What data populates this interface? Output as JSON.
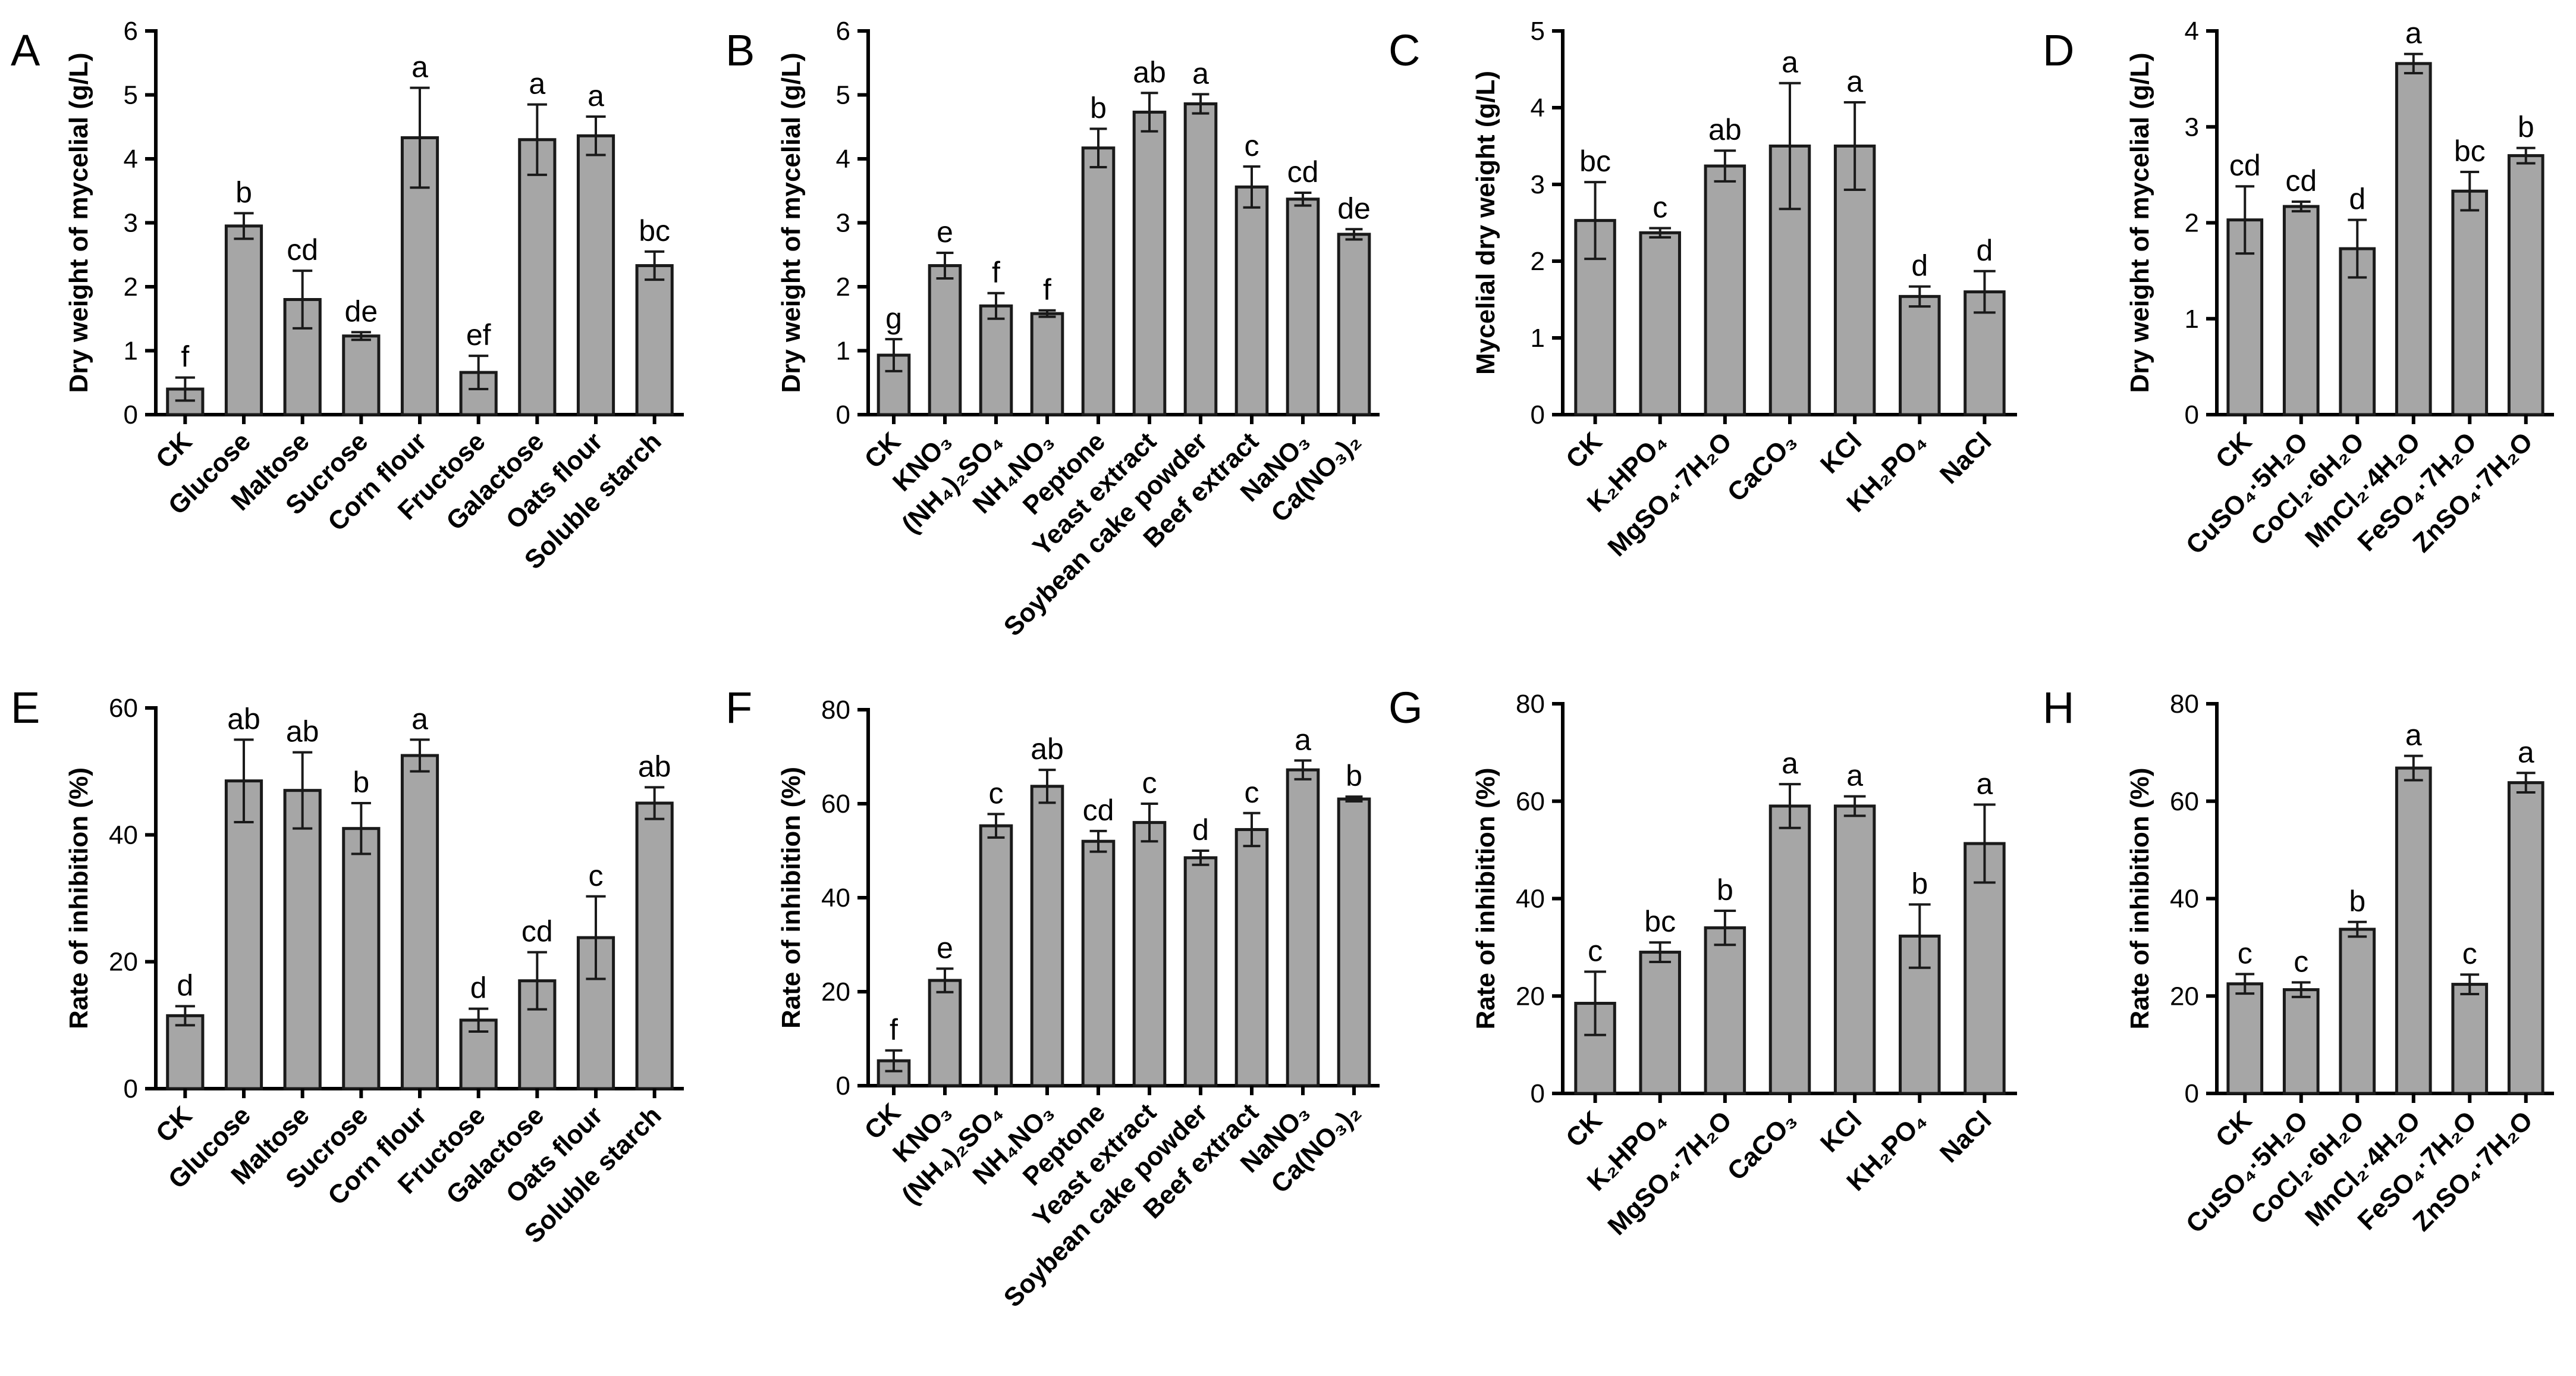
{
  "chart_data": [
    {
      "panel": "A",
      "type": "bar",
      "ylabel": "Dry weight of mycelial (g/L)",
      "ylim": [
        0,
        6
      ],
      "yticks": [
        0,
        1,
        2,
        3,
        4,
        5,
        6
      ],
      "categories": [
        "CK",
        "Glucose",
        "Maltose",
        "Sucrose",
        "Corn flour",
        "Fructose",
        "Galactose",
        "Oats flour",
        "Soluble starch"
      ],
      "values": [
        0.4,
        2.95,
        1.8,
        1.23,
        4.33,
        0.66,
        4.3,
        4.36,
        2.33
      ],
      "errors": [
        0.18,
        0.2,
        0.45,
        0.06,
        0.78,
        0.26,
        0.55,
        0.3,
        0.22
      ],
      "letters": [
        "f",
        "b",
        "cd",
        "de",
        "a",
        "ef",
        "a",
        "a",
        "bc"
      ]
    },
    {
      "panel": "B",
      "type": "bar",
      "ylabel": "Dry weight of mycelial (g/L)",
      "ylim": [
        0,
        6
      ],
      "yticks": [
        0,
        1,
        2,
        3,
        4,
        5,
        6
      ],
      "categories": [
        "CK",
        "KNO₃",
        "(NH₄)₂SO₄",
        "NH₄NO₃",
        "Peptone",
        "Yeast extract",
        "Soybean cake powder",
        "Beef extract",
        "NaNO₃",
        "Ca(NO₃)₂"
      ],
      "values": [
        0.93,
        2.33,
        1.7,
        1.58,
        4.17,
        4.73,
        4.86,
        3.56,
        3.37,
        2.82
      ],
      "errors": [
        0.25,
        0.2,
        0.2,
        0.05,
        0.3,
        0.3,
        0.15,
        0.32,
        0.1,
        0.08
      ],
      "letters": [
        "g",
        "e",
        "f",
        "f",
        "b",
        "ab",
        "a",
        "c",
        "cd",
        "de"
      ]
    },
    {
      "panel": "C",
      "type": "bar",
      "ylabel": "Mycelial dry weight (g/L)",
      "ylim": [
        0,
        5
      ],
      "yticks": [
        0,
        1,
        2,
        3,
        4,
        5
      ],
      "categories": [
        "CK",
        "K₂HPO₄",
        "MgSO₄·7H₂O",
        "CaCO₃",
        "KCl",
        "KH₂PO₄",
        "NaCl"
      ],
      "values": [
        2.53,
        2.37,
        3.24,
        3.5,
        3.5,
        1.54,
        1.6
      ],
      "errors": [
        0.5,
        0.06,
        0.2,
        0.82,
        0.57,
        0.13,
        0.27
      ],
      "letters": [
        "bc",
        "c",
        "ab",
        "a",
        "a",
        "d",
        "d"
      ]
    },
    {
      "panel": "D",
      "type": "bar",
      "ylabel": "Dry weight of mycelial (g/L)",
      "ylim": [
        0,
        4
      ],
      "yticks": [
        0,
        1,
        2,
        3,
        4
      ],
      "categories": [
        "CK",
        "CuSO₄·5H₂O",
        "CoCl₂·6H₂O",
        "MnCl₂·4H₂O",
        "FeSO₄·7H₂O",
        "ZnSO₄·7H₂O"
      ],
      "values": [
        2.03,
        2.17,
        1.73,
        3.66,
        2.33,
        2.7
      ],
      "errors": [
        0.35,
        0.05,
        0.3,
        0.1,
        0.2,
        0.08
      ],
      "letters": [
        "cd",
        "cd",
        "d",
        "a",
        "bc",
        "b"
      ]
    },
    {
      "panel": "E",
      "type": "bar",
      "ylabel": "Rate of inhibition (%)",
      "ylim": [
        0,
        60
      ],
      "yticks": [
        0,
        20,
        40,
        60
      ],
      "categories": [
        "CK",
        "Glucose",
        "Maltose",
        "Sucrose",
        "Corn flour",
        "Fructose",
        "Galactose",
        "Oats flour",
        "Soluble starch"
      ],
      "values": [
        11.5,
        48.5,
        47.0,
        41.0,
        52.5,
        10.8,
        17.0,
        23.8,
        45.0
      ],
      "errors": [
        1.5,
        6.5,
        6.0,
        4.0,
        2.5,
        1.8,
        4.5,
        6.5,
        2.5
      ],
      "letters": [
        "d",
        "ab",
        "ab",
        "b",
        "a",
        "d",
        "cd",
        "c",
        "ab"
      ]
    },
    {
      "panel": "F",
      "type": "bar",
      "ylabel": "Rate of inhibition (%)",
      "ylim": [
        0,
        80
      ],
      "yticks": [
        0,
        20,
        40,
        60,
        80
      ],
      "categories": [
        "CK",
        "KNO₃",
        "(NH₄)₂SO₄",
        "NH₄NO₃",
        "Peptone",
        "Yeast extract",
        "Soybean cake powder",
        "Beef extract",
        "NaNO₃",
        "Ca(NO₃)₂"
      ],
      "values": [
        5.3,
        22.4,
        55.3,
        63.7,
        52.0,
        56.0,
        48.5,
        54.5,
        67.2,
        61.0
      ],
      "errors": [
        2.2,
        2.5,
        2.5,
        3.5,
        2.2,
        4.0,
        1.5,
        3.5,
        2.0,
        0.5
      ],
      "letters": [
        "f",
        "e",
        "c",
        "ab",
        "cd",
        "c",
        "d",
        "c",
        "a",
        "b"
      ]
    },
    {
      "panel": "G",
      "type": "bar",
      "ylabel": "Rate of inhibition (%)",
      "ylim": [
        0,
        80
      ],
      "yticks": [
        0,
        20,
        40,
        60,
        80
      ],
      "categories": [
        "CK",
        "K₂HPO₄",
        "MgSO₄·7H₂O",
        "CaCO₃",
        "KCl",
        "KH₂PO₄",
        "NaCl"
      ],
      "values": [
        18.5,
        29.0,
        34.0,
        59.0,
        59.0,
        32.3,
        51.3
      ],
      "errors": [
        6.5,
        2.0,
        3.5,
        4.5,
        2.0,
        6.5,
        8.0
      ],
      "letters": [
        "c",
        "bc",
        "b",
        "a",
        "a",
        "b",
        "a"
      ]
    },
    {
      "panel": "H",
      "type": "bar",
      "ylabel": "Rate of inhibition (%)",
      "ylim": [
        0,
        80
      ],
      "yticks": [
        0,
        20,
        40,
        60,
        80
      ],
      "categories": [
        "CK",
        "CuSO₄·5H₂O",
        "CoCl₂·6H₂O",
        "MnCl₂·4H₂O",
        "FeSO₄·7H₂O",
        "ZnSO₄·7H₂O"
      ],
      "values": [
        22.5,
        21.3,
        33.7,
        66.8,
        22.4,
        63.8
      ],
      "errors": [
        2.0,
        1.5,
        1.5,
        2.5,
        2.0,
        2.0
      ],
      "letters": [
        "c",
        "c",
        "b",
        "a",
        "c",
        "a"
      ]
    }
  ]
}
